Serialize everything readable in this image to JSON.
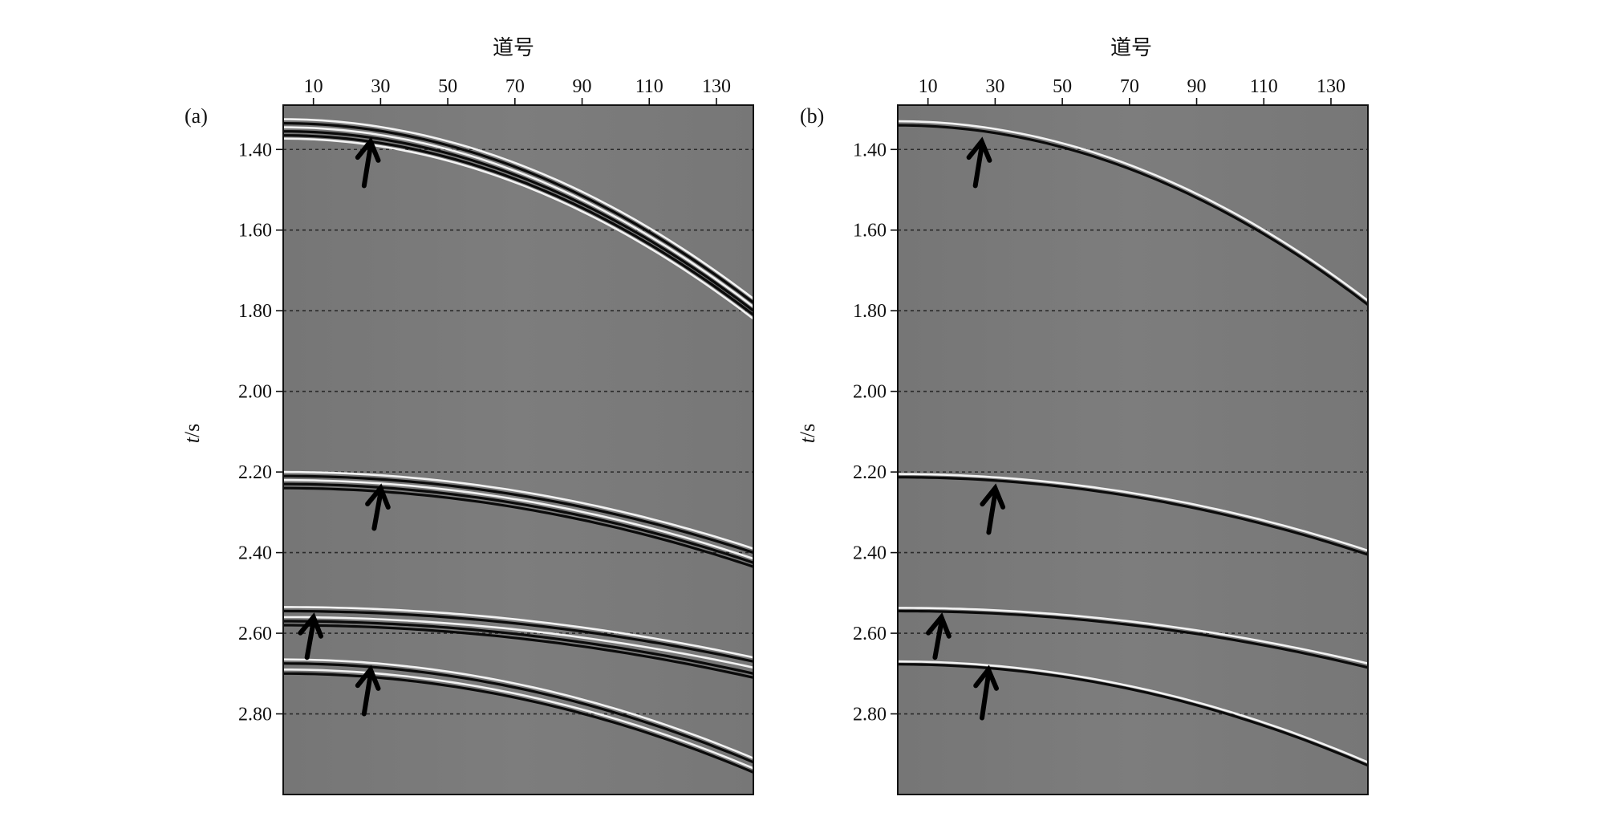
{
  "chart_data": [
    {
      "type": "seismic-section",
      "panel_label": "(a)",
      "xlabel": "道号",
      "ylabel": "t/s",
      "x_ticks": [
        10,
        30,
        50,
        70,
        90,
        110,
        130
      ],
      "x_tick_labels": [
        "10",
        "30",
        "50",
        "70",
        "90",
        "110",
        "130"
      ],
      "xlim": [
        1,
        141
      ],
      "y_ticks": [
        1.4,
        1.6,
        1.8,
        2.0,
        2.2,
        2.4,
        2.6,
        2.8
      ],
      "y_tick_labels": [
        "1.40",
        "1.60",
        "1.80",
        "2.00",
        "2.20",
        "2.40",
        "2.60",
        "2.80"
      ],
      "ylim": [
        1.29,
        3.0
      ],
      "grid": "horizontal dashed lines at y ticks",
      "background_color": "#7b7b7b",
      "events": [
        {
          "t0": 1.325,
          "t_end": 1.77,
          "polarity": "white"
        },
        {
          "t0": 1.335,
          "t_end": 1.78,
          "polarity": "black"
        },
        {
          "t0": 1.345,
          "t_end": 1.79,
          "polarity": "white"
        },
        {
          "t0": 1.355,
          "t_end": 1.8,
          "polarity": "black"
        },
        {
          "t0": 1.365,
          "t_end": 1.81,
          "polarity": "black"
        },
        {
          "t0": 1.373,
          "t_end": 1.82,
          "polarity": "white"
        },
        {
          "t0": 2.2,
          "t_end": 2.39,
          "polarity": "white"
        },
        {
          "t0": 2.21,
          "t_end": 2.4,
          "polarity": "black"
        },
        {
          "t0": 2.22,
          "t_end": 2.415,
          "polarity": "white"
        },
        {
          "t0": 2.23,
          "t_end": 2.425,
          "polarity": "black"
        },
        {
          "t0": 2.24,
          "t_end": 2.435,
          "polarity": "black"
        },
        {
          "t0": 2.535,
          "t_end": 2.66,
          "polarity": "white"
        },
        {
          "t0": 2.545,
          "t_end": 2.67,
          "polarity": "black"
        },
        {
          "t0": 2.56,
          "t_end": 2.685,
          "polarity": "white"
        },
        {
          "t0": 2.57,
          "t_end": 2.7,
          "polarity": "black"
        },
        {
          "t0": 2.58,
          "t_end": 2.71,
          "polarity": "black"
        },
        {
          "t0": 2.665,
          "t_end": 2.91,
          "polarity": "white"
        },
        {
          "t0": 2.675,
          "t_end": 2.92,
          "polarity": "black"
        },
        {
          "t0": 2.69,
          "t_end": 2.935,
          "polarity": "white"
        },
        {
          "t0": 2.7,
          "t_end": 2.945,
          "polarity": "black"
        }
      ],
      "arrows": [
        {
          "trace": 27,
          "t_tail": 1.49,
          "t_head": 1.38
        },
        {
          "trace": 30,
          "t_tail": 2.34,
          "t_head": 2.24
        },
        {
          "trace": 10,
          "t_tail": 2.66,
          "t_head": 2.56
        },
        {
          "trace": 27,
          "t_tail": 2.8,
          "t_head": 2.69
        }
      ]
    },
    {
      "type": "seismic-section",
      "panel_label": "(b)",
      "xlabel": "道号",
      "ylabel": "t/s",
      "x_ticks": [
        10,
        30,
        50,
        70,
        90,
        110,
        130
      ],
      "x_tick_labels": [
        "10",
        "30",
        "50",
        "70",
        "90",
        "110",
        "130"
      ],
      "xlim": [
        1,
        141
      ],
      "y_ticks": [
        1.4,
        1.6,
        1.8,
        2.0,
        2.2,
        2.4,
        2.6,
        2.8
      ],
      "y_tick_labels": [
        "1.40",
        "1.60",
        "1.80",
        "2.00",
        "2.20",
        "2.40",
        "2.60",
        "2.80"
      ],
      "ylim": [
        1.29,
        3.0
      ],
      "grid": "horizontal dashed lines at y ticks",
      "background_color": "#7b7b7b",
      "events": [
        {
          "t0": 1.33,
          "t_end": 1.775,
          "polarity": "white"
        },
        {
          "t0": 1.34,
          "t_end": 1.785,
          "polarity": "black"
        },
        {
          "t0": 2.205,
          "t_end": 2.395,
          "polarity": "white"
        },
        {
          "t0": 2.213,
          "t_end": 2.405,
          "polarity": "black"
        },
        {
          "t0": 2.537,
          "t_end": 2.675,
          "polarity": "white"
        },
        {
          "t0": 2.545,
          "t_end": 2.685,
          "polarity": "black"
        },
        {
          "t0": 2.67,
          "t_end": 2.92,
          "polarity": "white"
        },
        {
          "t0": 2.677,
          "t_end": 2.928,
          "polarity": "black"
        }
      ],
      "arrows": [
        {
          "trace": 26,
          "t_tail": 1.49,
          "t_head": 1.38
        },
        {
          "trace": 30,
          "t_tail": 2.35,
          "t_head": 2.24
        },
        {
          "trace": 14,
          "t_tail": 2.66,
          "t_head": 2.56
        },
        {
          "trace": 28,
          "t_tail": 2.81,
          "t_head": 2.69
        }
      ]
    }
  ]
}
